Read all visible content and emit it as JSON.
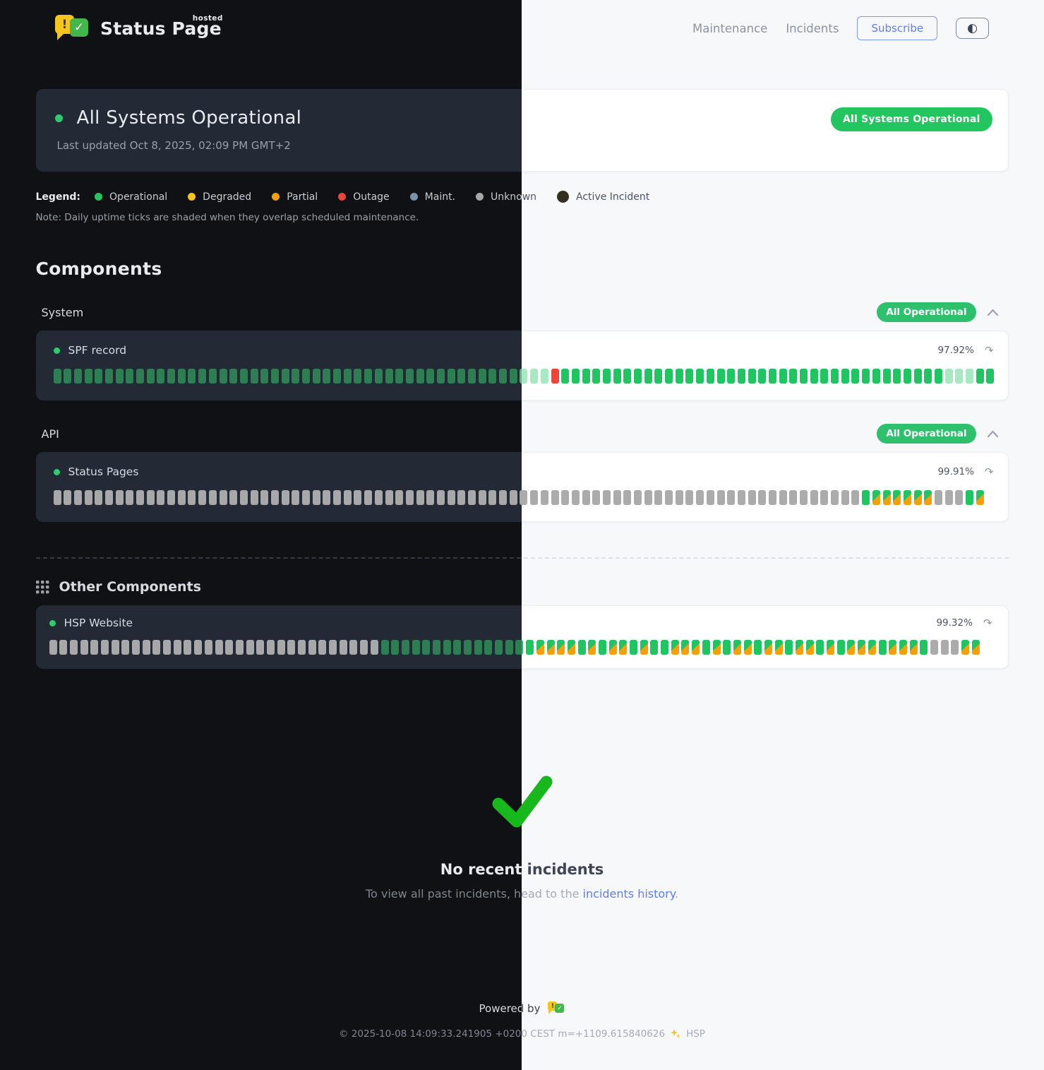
{
  "header": {
    "brand_title": "Status Page",
    "brand_superscript": "hosted",
    "brand_badge_exclamation": "!",
    "brand_badge_check": "✓",
    "nav": [
      {
        "label": "Maintenance"
      },
      {
        "label": "Incidents"
      }
    ],
    "subscribe_label": "Subscribe",
    "theme_toggle_icon": "◐"
  },
  "banner": {
    "title": "All Systems Operational",
    "last_updated": "Last updated Oct 8, 2025, 02:09 PM GMT+2",
    "badge": "All Systems Operational"
  },
  "legend": {
    "label": "Legend:",
    "items": [
      {
        "label": "Operational",
        "color": "#22c55e"
      },
      {
        "label": "Degraded",
        "color": "#f5c51d"
      },
      {
        "label": "Partial",
        "color": "#f59f0a"
      },
      {
        "label": "Outage",
        "color": "#f04438"
      },
      {
        "label": "Maint.",
        "color": "#7b93a8"
      },
      {
        "label": "Unknown",
        "color": "#a8a8a8"
      },
      {
        "label": "Active Incident",
        "color": "#332f20"
      }
    ],
    "note": "Note: Daily uptime ticks are shaded when they overlap scheduled maintenance."
  },
  "components": {
    "heading": "Components",
    "groups": [
      {
        "name": "System",
        "badge": "All Operational",
        "items": [
          {
            "name": "SPF record",
            "uptime": "97.92%",
            "refresh_icon": "↷",
            "ticks": "OOOOOOOOOOOOOOOOOOOOOOOOOOOOOOOOOOOOOOOOOOOOOPPPROOOOOOOOOOOOOOOOOOOOOOOOOOOOOOOOOOOOOPPPOO"
          }
        ]
      },
      {
        "name": "API",
        "badge": "All Operational",
        "items": [
          {
            "name": "Status Pages",
            "uptime": "99.91%",
            "refresh_icon": "↷",
            "ticks": "UUUUUUUUUUUUUUUUUUUUUUUUUUUUUUUUUUUUUUUUUUUUUUUUUUUUUUUUUUUUUUUUUUUUUUUUUUUUUUODDDDDDUUUOD"
          }
        ]
      }
    ],
    "other": {
      "heading": "Other Components",
      "items": [
        {
          "name": "HSP Website",
          "uptime": "99.32%",
          "refresh_icon": "↷",
          "ticks": "UUUUUUUUUUUUUUUUUUUUUUUUUUUUUUUUOOOOOOOOOOOOOOODDDDODODDODOODDDODODDODDODDODODDDODDDOUUUDD"
        }
      ]
    }
  },
  "incidents": {
    "title": "No recent incidents",
    "subtext_before": "To view all past incidents, head to the ",
    "link_label": "incidents history",
    "subtext_after": "."
  },
  "footer": {
    "powered_by": "Powered by",
    "copyright": "© 2025-10-08 14:09:33.241905 +0200 CEST m=+1109.615840626",
    "suffix": "HSP"
  },
  "colors": {
    "accent_green": "#22c55e",
    "tick_operational": "#1ec560",
    "tick_partial_pale": "#a6e9c3",
    "tick_outage": "#f04438",
    "tick_unknown": "#ababab",
    "tick_maintenance_orange": "#f59f0a",
    "link_blue": "#5f7df2",
    "check_green": "#16b81c",
    "dark_background": "#101114",
    "light_background": "#f7f8fa"
  }
}
